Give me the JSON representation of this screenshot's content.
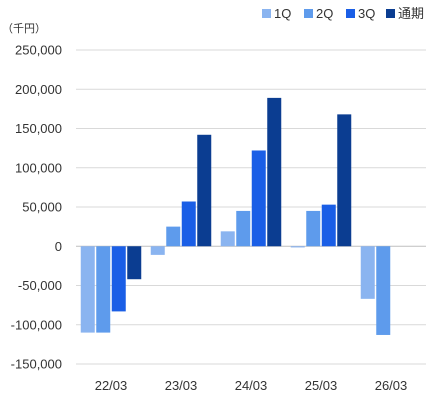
{
  "chart_data": {
    "type": "bar",
    "unit_label": "（千円）",
    "categories": [
      "22/03",
      "23/03",
      "24/03",
      "25/03",
      "26/03"
    ],
    "series": [
      {
        "name": "1Q",
        "color": "#8ab4f0",
        "values": [
          -110000,
          -11000,
          19000,
          -1500,
          -67000
        ]
      },
      {
        "name": "2Q",
        "color": "#5e9bec",
        "values": [
          -110000,
          25000,
          45000,
          45000,
          -113000
        ]
      },
      {
        "name": "3Q",
        "color": "#1a5ee6",
        "values": [
          -83000,
          57000,
          122000,
          53000,
          null
        ]
      },
      {
        "name": "通期",
        "color": "#0b3d91",
        "values": [
          -42000,
          142000,
          189000,
          168000,
          null
        ]
      }
    ],
    "yticks": [
      250000,
      200000,
      150000,
      100000,
      50000,
      0,
      -50000,
      -100000,
      -150000
    ],
    "ytick_labels": [
      "250,000",
      "200,000",
      "150,000",
      "100,000",
      "50,000",
      "0",
      "-50,000",
      "-100,000",
      "-150,000"
    ],
    "ylim": [
      -150000,
      250000
    ],
    "grid": true,
    "legend_position": "top-right"
  }
}
